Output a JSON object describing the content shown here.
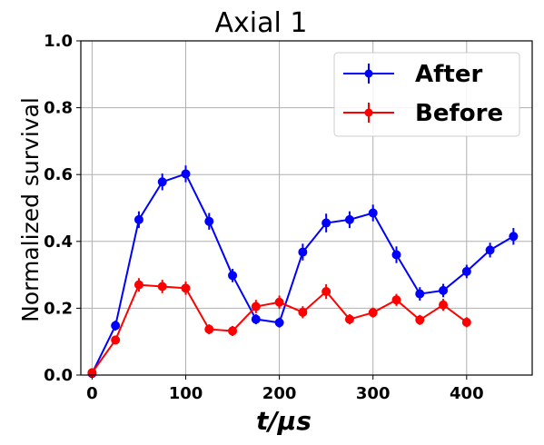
{
  "chart_data": {
    "type": "line",
    "title": "Axial 1",
    "xlabel": "t/μs",
    "ylabel": "Normalized survival",
    "xlim": [
      -12,
      470
    ],
    "ylim": [
      0,
      1
    ],
    "xticks": [
      0,
      100,
      200,
      300,
      400
    ],
    "yticks": [
      0.0,
      0.2,
      0.4,
      0.6,
      0.8,
      1.0
    ],
    "xtick_labels": [
      "0",
      "100",
      "200",
      "300",
      "400"
    ],
    "ytick_labels": [
      "0.0",
      "0.2",
      "0.4",
      "0.6",
      "0.8",
      "1.0"
    ],
    "grid": true,
    "legend_position": "upper-right",
    "series": [
      {
        "name": "After",
        "color": "#0000ff",
        "x": [
          0,
          25,
          50,
          75,
          100,
          125,
          150,
          175,
          200,
          225,
          250,
          275,
          300,
          325,
          350,
          375,
          400,
          425,
          450
        ],
        "y": [
          0.005,
          0.148,
          0.465,
          0.578,
          0.602,
          0.46,
          0.298,
          0.167,
          0.157,
          0.368,
          0.455,
          0.465,
          0.485,
          0.36,
          0.243,
          0.253,
          0.31,
          0.374,
          0.415
        ],
        "err": [
          0.01,
          0.015,
          0.025,
          0.025,
          0.025,
          0.025,
          0.02,
          0.015,
          0.015,
          0.025,
          0.028,
          0.025,
          0.025,
          0.025,
          0.02,
          0.02,
          0.02,
          0.022,
          0.025
        ]
      },
      {
        "name": "Before",
        "color": "#ff0000",
        "x": [
          0,
          25,
          50,
          75,
          100,
          125,
          150,
          175,
          200,
          225,
          250,
          275,
          300,
          325,
          350,
          375,
          400
        ],
        "y": [
          0.007,
          0.105,
          0.27,
          0.265,
          0.26,
          0.137,
          0.132,
          0.205,
          0.218,
          0.188,
          0.25,
          0.167,
          0.187,
          0.225,
          0.165,
          0.21,
          0.158
        ],
        "err": [
          0.008,
          0.012,
          0.02,
          0.02,
          0.02,
          0.015,
          0.015,
          0.02,
          0.02,
          0.018,
          0.022,
          0.015,
          0.015,
          0.018,
          0.015,
          0.018,
          0.015
        ]
      }
    ]
  }
}
